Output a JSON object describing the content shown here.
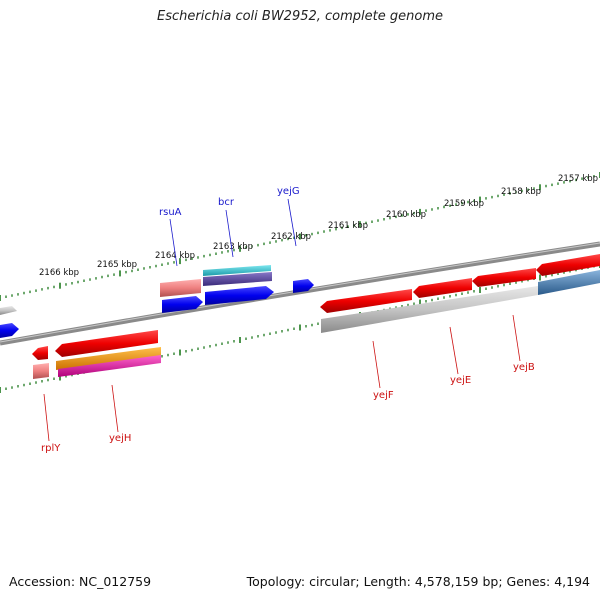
{
  "title": "Escherichia coli BW2952, complete genome",
  "footer": {
    "accession": "Accession: NC_012759",
    "summary": "Topology: circular; Length: 4,578,159 bp; Genes: 4,194"
  },
  "tick_labels": [
    "2157 kbp",
    "2158 kbp",
    "2159 kbp",
    "2160 kbp",
    "2161 kbp",
    "2162 kbp",
    "2163 kbp",
    "2164 kbp",
    "2165 kbp",
    "2166 kbp"
  ],
  "genes": {
    "forward": [
      "rsuA",
      "bcr",
      "yejG"
    ],
    "reverse": [
      "yejF",
      "yejE",
      "yejB",
      "yejH",
      "rplY"
    ]
  },
  "colors": {
    "forward_label": "#1a1acc",
    "reverse_label": "#cc1111",
    "backbone": "#7a7a7a",
    "tick": "#1f7a1f",
    "cds_forward": "#1010ee",
    "cds_reverse": "#ee1111",
    "rna_cyan": "#22b8c8",
    "purple_feature": "#5a4a9a",
    "orange_feature": "#ff9900",
    "magenta_feature": "#ee1199",
    "steelblue_feature": "#4a7fb5"
  }
}
